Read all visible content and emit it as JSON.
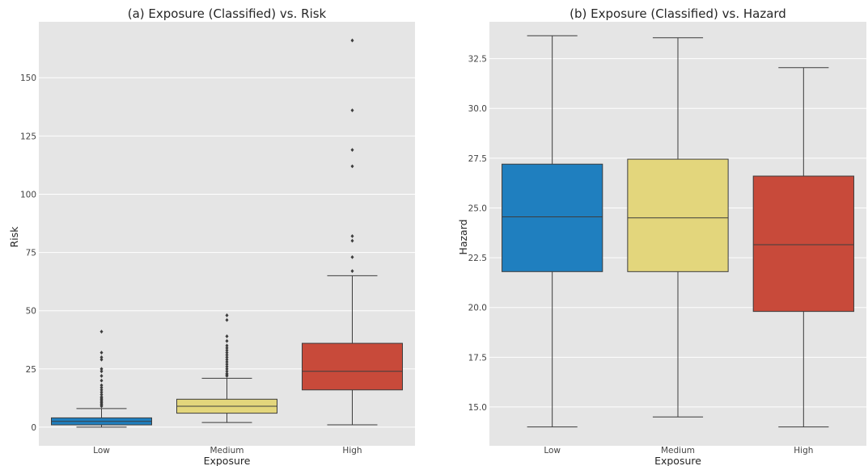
{
  "chart_data": [
    {
      "type": "box",
      "title": "(a) Exposure (Classified) vs. Risk",
      "xlabel": "Exposure",
      "ylabel": "Risk",
      "categories": [
        "Low",
        "Medium",
        "High"
      ],
      "ylim": [
        -8,
        174
      ],
      "yticks": [
        0,
        25,
        50,
        75,
        100,
        125,
        150
      ],
      "grid": true,
      "boxes": [
        {
          "category": "Low",
          "color": "#1f7fbf",
          "whisker_low": 0,
          "q1": 1,
          "median": 2.5,
          "q3": 4,
          "whisker_high": 8,
          "outliers": [
            9,
            9.5,
            10,
            10.5,
            11,
            11.5,
            12,
            12.5,
            13,
            14,
            15,
            16,
            17,
            18,
            20,
            22,
            24,
            25,
            29,
            30,
            32,
            41
          ]
        },
        {
          "category": "Medium",
          "color": "#e3d67c",
          "whisker_low": 2,
          "q1": 6,
          "median": 9,
          "q3": 12,
          "whisker_high": 21,
          "outliers": [
            22,
            22.5,
            23,
            24,
            25,
            26,
            27,
            28,
            29,
            30,
            31,
            32,
            33,
            34,
            35,
            37,
            39,
            46,
            48
          ]
        },
        {
          "category": "High",
          "color": "#c84a3a",
          "whisker_low": 1,
          "q1": 16,
          "median": 24,
          "q3": 36,
          "whisker_high": 65,
          "outliers": [
            67,
            73,
            80,
            82,
            112,
            119,
            136,
            166
          ]
        }
      ]
    },
    {
      "type": "box",
      "title": "(b) Exposure (Classified) vs. Hazard",
      "xlabel": "Exposure",
      "ylabel": "Hazard",
      "categories": [
        "Low",
        "Medium",
        "High"
      ],
      "ylim": [
        13.05,
        34.35
      ],
      "yticks": [
        15.0,
        17.5,
        20.0,
        22.5,
        25.0,
        27.5,
        30.0,
        32.5
      ],
      "grid": true,
      "boxes": [
        {
          "category": "Low",
          "color": "#1f7fbf",
          "whisker_low": 14.0,
          "q1": 21.8,
          "median": 24.55,
          "q3": 27.2,
          "whisker_high": 33.65,
          "outliers": []
        },
        {
          "category": "Medium",
          "color": "#e3d67c",
          "whisker_low": 14.5,
          "q1": 21.8,
          "median": 24.5,
          "q3": 27.45,
          "whisker_high": 33.55,
          "outliers": []
        },
        {
          "category": "High",
          "color": "#c84a3a",
          "whisker_low": 14.0,
          "q1": 19.8,
          "median": 23.15,
          "q3": 26.6,
          "whisker_high": 32.05,
          "outliers": []
        }
      ]
    }
  ]
}
